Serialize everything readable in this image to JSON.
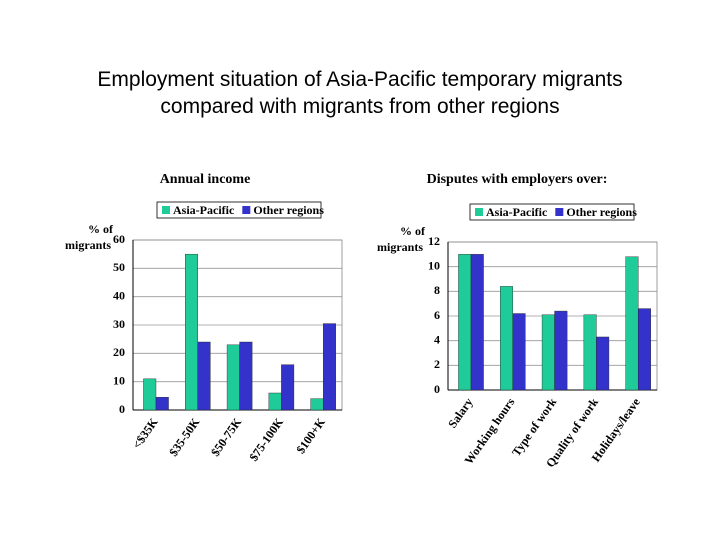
{
  "title": "Employment situation of Asia-Pacific temporary migrants compared with migrants from other regions",
  "chart_data": [
    {
      "type": "bar",
      "title": "Annual income",
      "ylabel": [
        "% of",
        "migrants"
      ],
      "categories": [
        "<$35K",
        "$35-50K",
        "$50-75K",
        "$75-100K",
        "$100+K"
      ],
      "series": [
        {
          "name": "Asia-Pacific",
          "color": "#1fcc99",
          "values": [
            11,
            55,
            23,
            6,
            4
          ]
        },
        {
          "name": "Other regions",
          "color": "#3333cc",
          "values": [
            4.5,
            24,
            24,
            16,
            30.5
          ]
        }
      ],
      "ylim": [
        0,
        60
      ],
      "yticks": [
        0,
        10,
        20,
        30,
        40,
        50,
        60
      ],
      "grid": true,
      "legend": "top"
    },
    {
      "type": "bar",
      "title": "Disputes with employers over:",
      "ylabel": [
        "% of",
        "migrants"
      ],
      "categories": [
        "Salary",
        "Working hours",
        "Type of work",
        "Quality of work",
        "Holidays/leave"
      ],
      "series": [
        {
          "name": "Asia-Pacific",
          "color": "#1fcc99",
          "values": [
            11,
            8.4,
            6.1,
            6.1,
            10.8
          ]
        },
        {
          "name": "Other regions",
          "color": "#3333cc",
          "values": [
            11,
            6.2,
            6.4,
            4.3,
            6.6
          ]
        }
      ],
      "ylim": [
        0,
        12
      ],
      "yticks": [
        0,
        2,
        4,
        6,
        8,
        10,
        12
      ],
      "grid": true,
      "legend": "top"
    }
  ]
}
